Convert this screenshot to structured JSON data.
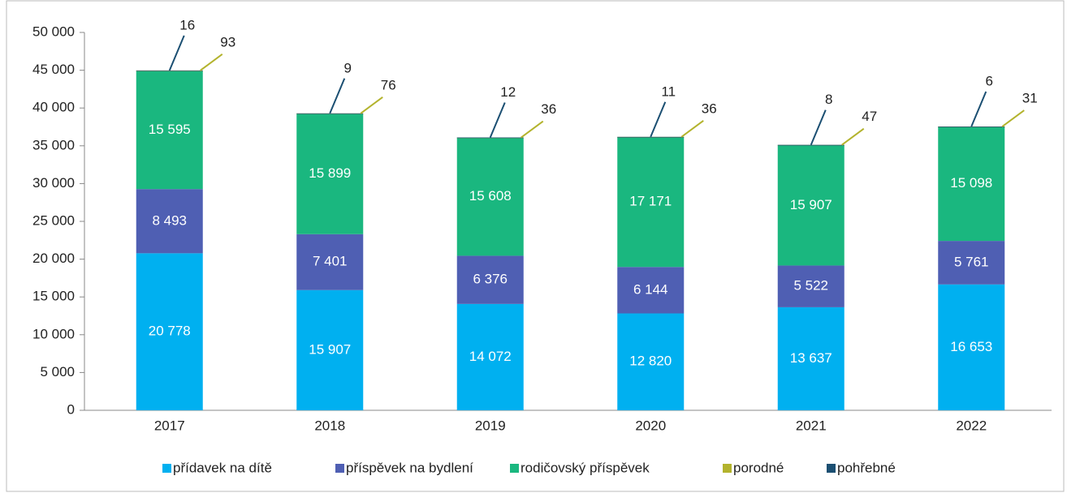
{
  "chart_data": {
    "type": "stacked_bar",
    "categories": [
      "2017",
      "2018",
      "2019",
      "2020",
      "2021",
      "2022"
    ],
    "series": [
      {
        "name": "přídavek na dítě",
        "color": "#00b0f0",
        "values": [
          20778,
          15907,
          14072,
          12820,
          13637,
          16653
        ],
        "value_labels": [
          "20 778",
          "15 907",
          "14 072",
          "12 820",
          "13 637",
          "16 653"
        ]
      },
      {
        "name": "příspěvek na bydlení",
        "color": "#4f5fb3",
        "values": [
          8493,
          7401,
          6376,
          6144,
          5522,
          5761
        ],
        "value_labels": [
          "8 493",
          "7 401",
          "6 376",
          "6 144",
          "5 522",
          "5 761"
        ]
      },
      {
        "name": "rodičovský příspěvek",
        "color": "#1ab77f",
        "values": [
          15595,
          15899,
          15608,
          17171,
          15907,
          15098
        ],
        "value_labels": [
          "15 595",
          "15 899",
          "15 608",
          "17 171",
          "15 907",
          "15 098"
        ]
      },
      {
        "name": "porodné",
        "color": "#b3b32d",
        "values": [
          93,
          76,
          36,
          36,
          47,
          31
        ]
      },
      {
        "name": "pohřebné",
        "color": "#1b4f72",
        "values": [
          16,
          9,
          12,
          11,
          8,
          6
        ]
      }
    ],
    "ylim": [
      0,
      50000
    ],
    "yticks": [
      0,
      {
        "value": 5000,
        "label": "5 000"
      },
      {
        "value": 10000,
        "label": "10 000"
      },
      {
        "value": 15000,
        "label": "15 000"
      },
      {
        "value": 20000,
        "label": "20 000"
      },
      {
        "value": 25000,
        "label": "25 000"
      },
      {
        "value": 30000,
        "label": "30 000"
      },
      {
        "value": 35000,
        "label": "35 000"
      },
      {
        "value": 40000,
        "label": "40 000"
      },
      {
        "value": 45000,
        "label": "45 000"
      },
      {
        "value": 50000,
        "label": "50 000"
      }
    ],
    "legend": "bottom"
  }
}
